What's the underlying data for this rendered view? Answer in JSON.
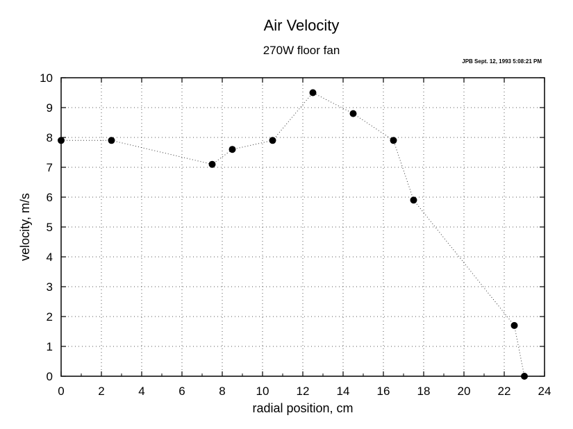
{
  "chart_data": {
    "type": "scatter",
    "title": "Air Velocity",
    "subtitle": "270W floor fan",
    "annotation": "JPB Sept. 12, 1993   5:08:21 PM",
    "xlabel": "radial position, cm",
    "ylabel": "velocity, m/s",
    "xlim": [
      0,
      24
    ],
    "ylim": [
      0,
      10
    ],
    "xticks": [
      0,
      2,
      4,
      6,
      8,
      10,
      12,
      14,
      16,
      18,
      20,
      22,
      24
    ],
    "yticks": [
      0,
      1,
      2,
      3,
      4,
      5,
      6,
      7,
      8,
      9,
      10
    ],
    "grid": true,
    "connected_with_dotted_line": true,
    "marker_color": "#000000",
    "series": [
      {
        "points": [
          {
            "x": 0,
            "y": 7.9
          },
          {
            "x": 2.5,
            "y": 7.9
          },
          {
            "x": 7.5,
            "y": 7.1
          },
          {
            "x": 8.5,
            "y": 7.6
          },
          {
            "x": 10.5,
            "y": 7.9
          },
          {
            "x": 12.5,
            "y": 9.5
          },
          {
            "x": 14.5,
            "y": 8.8
          },
          {
            "x": 16.5,
            "y": 7.9
          },
          {
            "x": 17.5,
            "y": 5.9
          },
          {
            "x": 22.5,
            "y": 1.7
          },
          {
            "x": 23,
            "y": 0
          }
        ]
      }
    ]
  }
}
